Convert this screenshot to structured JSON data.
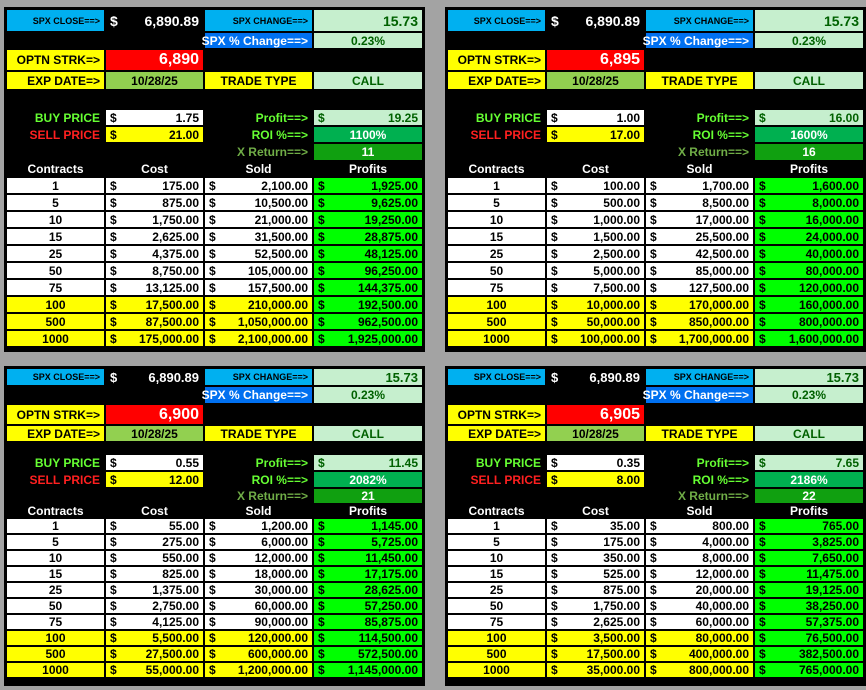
{
  "labels": {
    "spx_close": "SPX CLOSE==>",
    "spx_change": "SPX CHANGE==>",
    "spx_pct": "SPX % Change==>",
    "strike": "OPTN STRK=>",
    "exp": "EXP DATE=>",
    "trade_type": "TRADE TYPE",
    "buy": "BUY PRICE",
    "sell": "SELL PRICE",
    "profit": "Profit==>",
    "roi": "ROI %==>",
    "xret": "X Return==>",
    "cols": [
      "Contracts",
      "Cost",
      "Sold",
      "Profits"
    ],
    "currency": "$"
  },
  "panels": [
    {
      "close": "6,890.89",
      "change": "15.73",
      "pct": "0.23%",
      "strike": "6,890",
      "exp": "10/28/25",
      "type": "CALL",
      "buy": "1.75",
      "sell": "21.00",
      "profit": "19.25",
      "roi": "1100%",
      "xret": "11",
      "rows": [
        [
          "1",
          "175.00",
          "2,100.00",
          "1,925.00"
        ],
        [
          "5",
          "875.00",
          "10,500.00",
          "9,625.00"
        ],
        [
          "10",
          "1,750.00",
          "21,000.00",
          "19,250.00"
        ],
        [
          "15",
          "2,625.00",
          "31,500.00",
          "28,875.00"
        ],
        [
          "25",
          "4,375.00",
          "52,500.00",
          "48,125.00"
        ],
        [
          "50",
          "8,750.00",
          "105,000.00",
          "96,250.00"
        ],
        [
          "75",
          "13,125.00",
          "157,500.00",
          "144,375.00"
        ],
        [
          "100",
          "17,500.00",
          "210,000.00",
          "192,500.00"
        ],
        [
          "500",
          "87,500.00",
          "1,050,000.00",
          "962,500.00"
        ],
        [
          "1000",
          "175,000.00",
          "2,100,000.00",
          "1,925,000.00"
        ]
      ]
    },
    {
      "close": "6,890.89",
      "change": "15.73",
      "pct": "0.23%",
      "strike": "6,895",
      "exp": "10/28/25",
      "type": "CALL",
      "buy": "1.00",
      "sell": "17.00",
      "profit": "16.00",
      "roi": "1600%",
      "xret": "16",
      "rows": [
        [
          "1",
          "100.00",
          "1,700.00",
          "1,600.00"
        ],
        [
          "5",
          "500.00",
          "8,500.00",
          "8,000.00"
        ],
        [
          "10",
          "1,000.00",
          "17,000.00",
          "16,000.00"
        ],
        [
          "15",
          "1,500.00",
          "25,500.00",
          "24,000.00"
        ],
        [
          "25",
          "2,500.00",
          "42,500.00",
          "40,000.00"
        ],
        [
          "50",
          "5,000.00",
          "85,000.00",
          "80,000.00"
        ],
        [
          "75",
          "7,500.00",
          "127,500.00",
          "120,000.00"
        ],
        [
          "100",
          "10,000.00",
          "170,000.00",
          "160,000.00"
        ],
        [
          "500",
          "50,000.00",
          "850,000.00",
          "800,000.00"
        ],
        [
          "1000",
          "100,000.00",
          "1,700,000.00",
          "1,600,000.00"
        ]
      ]
    },
    {
      "close": "6,890.89",
      "change": "15.73",
      "pct": "0.23%",
      "strike": "6,900",
      "exp": "10/28/25",
      "type": "CALL",
      "buy": "0.55",
      "sell": "12.00",
      "profit": "11.45",
      "roi": "2082%",
      "xret": "21",
      "rows": [
        [
          "1",
          "55.00",
          "1,200.00",
          "1,145.00"
        ],
        [
          "5",
          "275.00",
          "6,000.00",
          "5,725.00"
        ],
        [
          "10",
          "550.00",
          "12,000.00",
          "11,450.00"
        ],
        [
          "15",
          "825.00",
          "18,000.00",
          "17,175.00"
        ],
        [
          "25",
          "1,375.00",
          "30,000.00",
          "28,625.00"
        ],
        [
          "50",
          "2,750.00",
          "60,000.00",
          "57,250.00"
        ],
        [
          "75",
          "4,125.00",
          "90,000.00",
          "85,875.00"
        ],
        [
          "100",
          "5,500.00",
          "120,000.00",
          "114,500.00"
        ],
        [
          "500",
          "27,500.00",
          "600,000.00",
          "572,500.00"
        ],
        [
          "1000",
          "55,000.00",
          "1,200,000.00",
          "1,145,000.00"
        ]
      ]
    },
    {
      "close": "6,890.89",
      "change": "15.73",
      "pct": "0.23%",
      "strike": "6,905",
      "exp": "10/28/25",
      "type": "CALL",
      "buy": "0.35",
      "sell": "8.00",
      "profit": "7.65",
      "roi": "2186%",
      "xret": "22",
      "rows": [
        [
          "1",
          "35.00",
          "800.00",
          "765.00"
        ],
        [
          "5",
          "175.00",
          "4,000.00",
          "3,825.00"
        ],
        [
          "10",
          "350.00",
          "8,000.00",
          "7,650.00"
        ],
        [
          "15",
          "525.00",
          "12,000.00",
          "11,475.00"
        ],
        [
          "25",
          "875.00",
          "20,000.00",
          "19,125.00"
        ],
        [
          "50",
          "1,750.00",
          "40,000.00",
          "38,250.00"
        ],
        [
          "75",
          "2,625.00",
          "60,000.00",
          "57,375.00"
        ],
        [
          "100",
          "3,500.00",
          "80,000.00",
          "76,500.00"
        ],
        [
          "500",
          "17,500.00",
          "400,000.00",
          "382,500.00"
        ],
        [
          "1000",
          "35,000.00",
          "800,000.00",
          "765,000.00"
        ]
      ]
    }
  ]
}
